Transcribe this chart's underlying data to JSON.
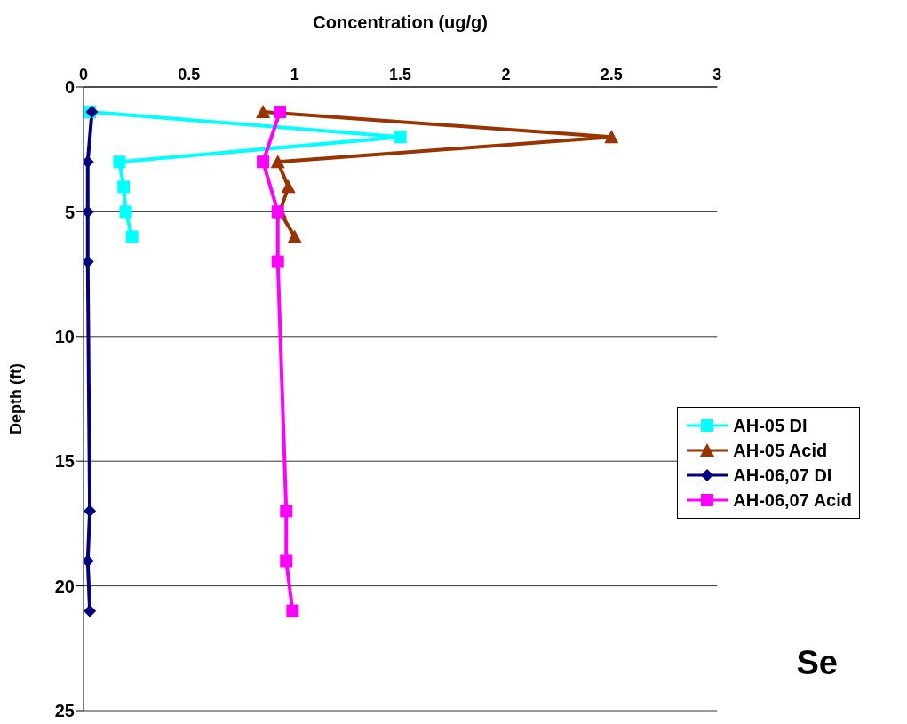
{
  "chart_data": {
    "type": "line",
    "xlabel": "Concentration (ug/g)",
    "ylabel": "Depth (ft)",
    "annotations": [
      "Se"
    ],
    "xlim": [
      0,
      3
    ],
    "xticks": [
      0,
      0.5,
      1,
      1.5,
      2,
      2.5,
      3
    ],
    "ylim": [
      25,
      0
    ],
    "yticks": [
      0,
      5,
      10,
      15,
      20,
      25
    ],
    "grid": "y",
    "legend": "right",
    "line_style": "solid",
    "series": [
      {
        "name": "AH-05 DI",
        "color": "#00ffff",
        "marker": "square",
        "x": [
          0.03,
          1.5,
          0.17,
          0.19,
          0.2,
          0.23
        ],
        "values": [
          1,
          2,
          3,
          4,
          5,
          6
        ]
      },
      {
        "name": "AH-05 Acid",
        "color": "#993300",
        "marker": "triangle",
        "x": [
          0.85,
          2.5,
          0.92,
          0.97,
          0.93,
          1.0
        ],
        "values": [
          1,
          2,
          3,
          4,
          5,
          6
        ]
      },
      {
        "name": "AH-06,07 DI",
        "color": "#000080",
        "marker": "diamond",
        "x": [
          0.04,
          0.02,
          0.02,
          0.02,
          0.03,
          0.02,
          0.03
        ],
        "values": [
          1,
          3,
          5,
          7,
          17,
          19,
          21
        ]
      },
      {
        "name": "AH-06,07 Acid",
        "color": "#ff00ff",
        "marker": "square",
        "x": [
          0.93,
          0.85,
          0.92,
          0.92,
          0.96,
          0.96,
          0.99
        ],
        "values": [
          1,
          3,
          5,
          7,
          17,
          19,
          21
        ]
      }
    ]
  }
}
